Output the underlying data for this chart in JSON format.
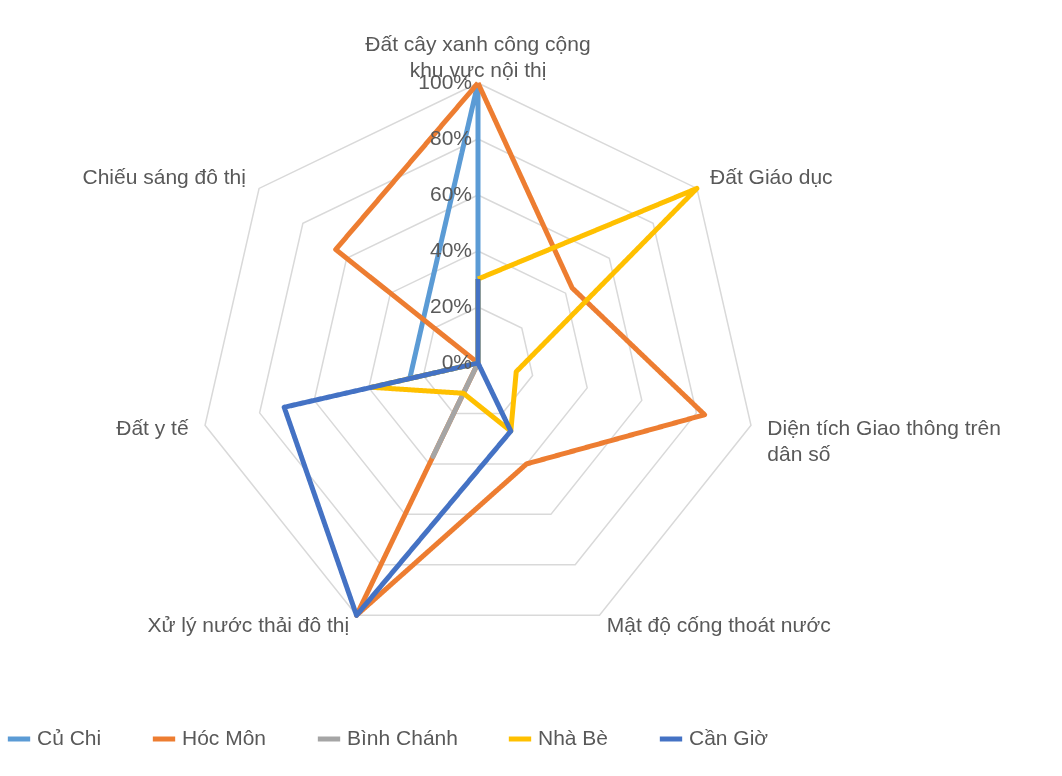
{
  "chart_data": {
    "type": "radar",
    "categories": [
      "Đất cây xanh công cộng\nkhu vực nội thị",
      "Đất Giáo dục",
      "Diện tích Giao thông trên\ndân số",
      "Mật độ cống thoát nước",
      "Xử lý nước thải đô thị",
      "Đất y tế",
      "Chiếu sáng đô thị"
    ],
    "series": [
      {
        "name": "Củ Chi",
        "color": "#5b9bd5",
        "values": [
          100,
          0,
          0,
          0,
          0,
          25,
          25
        ]
      },
      {
        "name": "Hóc Môn",
        "color": "#ed7d31",
        "values": [
          100,
          43,
          83,
          40,
          100,
          0,
          65
        ]
      },
      {
        "name": "Bình Chánh",
        "color": "#a5a5a5",
        "values": [
          0,
          0,
          0,
          0,
          37,
          0,
          0
        ]
      },
      {
        "name": "Nhà Bè",
        "color": "#ffc000",
        "values": [
          30,
          100,
          14,
          27,
          12,
          39,
          0
        ]
      },
      {
        "name": "Cần Giờ",
        "color": "#4472c4",
        "values": [
          30,
          0,
          0,
          27,
          100,
          71,
          0
        ]
      }
    ],
    "ylim": [
      0,
      100
    ],
    "yticks": [
      {
        "value": 0,
        "label": "0%"
      },
      {
        "value": 20,
        "label": "20%"
      },
      {
        "value": 40,
        "label": "40%"
      },
      {
        "value": 60,
        "label": "60%"
      },
      {
        "value": 80,
        "label": "80%"
      },
      {
        "value": 100,
        "label": "100%"
      }
    ],
    "grid": true,
    "legend": "bottom",
    "line_style": "solid"
  }
}
